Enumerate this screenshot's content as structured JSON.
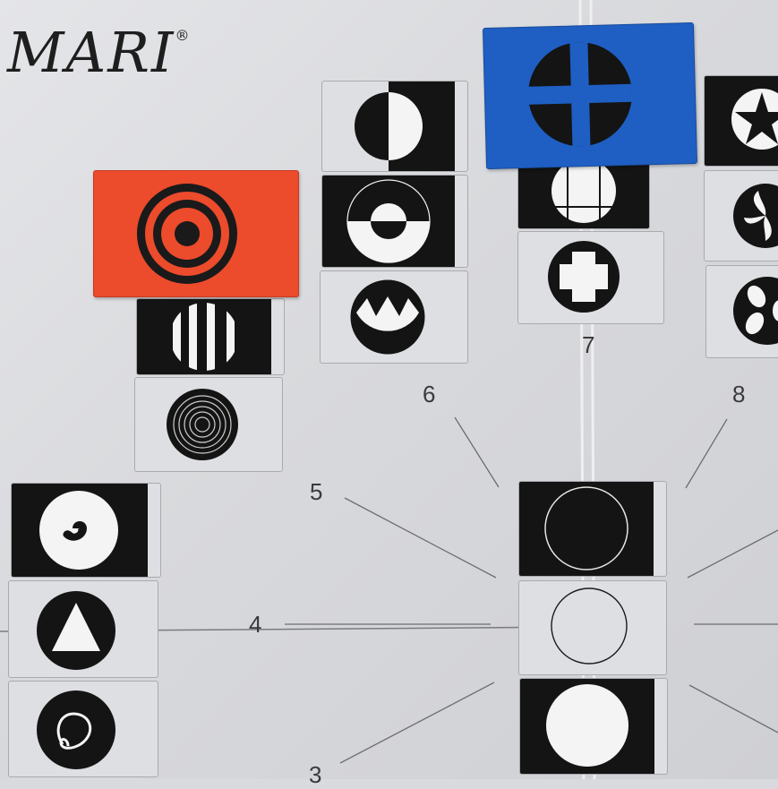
{
  "brand": {
    "name": "MARI",
    "mark": "®"
  },
  "sector_numbers": [
    "3",
    "4",
    "5",
    "6",
    "7",
    "8"
  ],
  "colors": {
    "board": "#d9dadd",
    "card_black": "#141414",
    "orange_card": "#ec4b2c",
    "blue_card": "#1f5fc4",
    "string": "#e8e8e8"
  },
  "cards": [
    "orange-target-card",
    "stripes-circle-card",
    "concentric-rings-card",
    "half-moon-card",
    "split-circle-card",
    "crown-circle-card",
    "blue-cross-card",
    "grid-circle-card",
    "plus-shape-card",
    "star-card",
    "swirl-card",
    "clover-card",
    "spiral-card",
    "triangle-card",
    "loop-card",
    "outline-circle-dark-card",
    "outline-circle-light-card",
    "white-circle-card"
  ]
}
